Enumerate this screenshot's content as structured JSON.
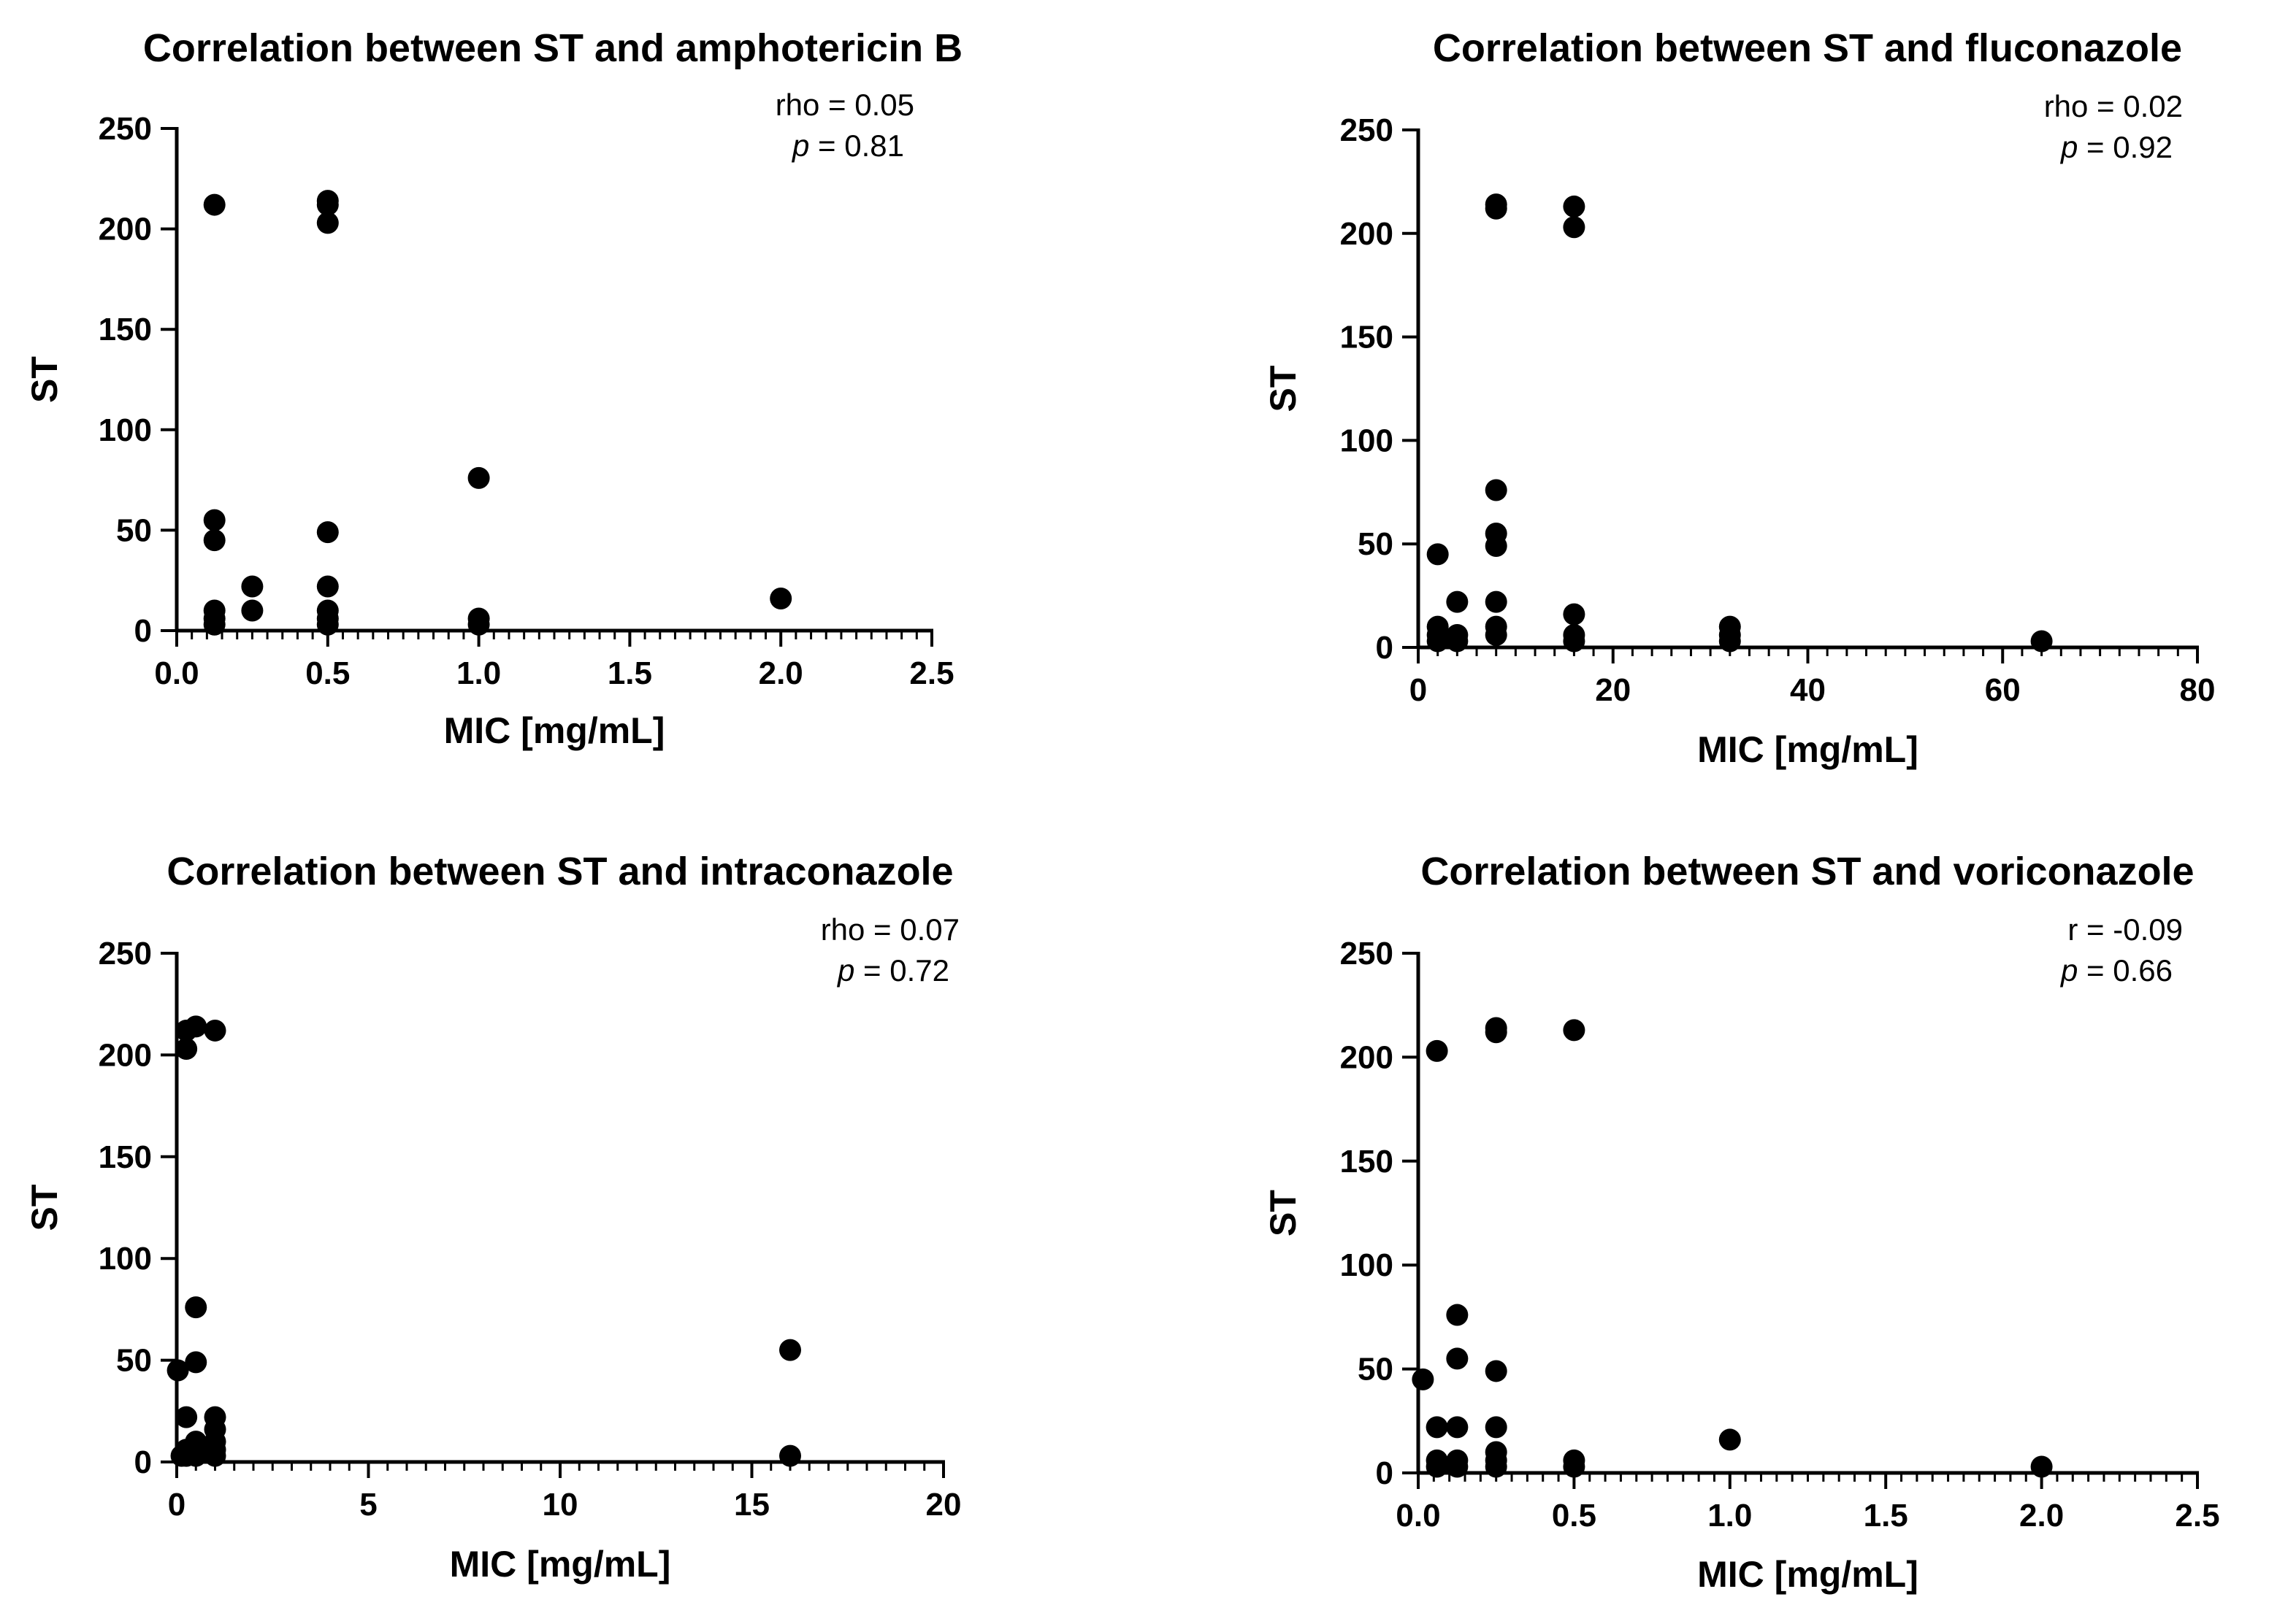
{
  "chart_data": [
    {
      "type": "scatter",
      "title": "Correlation between ST and amphotericin B",
      "xlabel": "MIC [mg/mL]",
      "ylabel": "ST",
      "xlim": [
        0,
        2.5
      ],
      "ylim": [
        0,
        250
      ],
      "xticks": [
        "0.0",
        "0.5",
        "1.0",
        "1.5",
        "2.0",
        "2.5"
      ],
      "yticks": [
        "0",
        "50",
        "100",
        "150",
        "200",
        "250"
      ],
      "stat_label": "rho = 0.05",
      "p_symbol": "p",
      "p_value": " = 0.81",
      "points": [
        [
          0.125,
          212
        ],
        [
          0.125,
          55
        ],
        [
          0.125,
          45
        ],
        [
          0.125,
          10
        ],
        [
          0.125,
          6
        ],
        [
          0.125,
          3
        ],
        [
          0.25,
          22
        ],
        [
          0.25,
          10
        ],
        [
          0.5,
          214
        ],
        [
          0.5,
          212
        ],
        [
          0.5,
          203
        ],
        [
          0.5,
          49
        ],
        [
          0.5,
          22
        ],
        [
          0.5,
          10
        ],
        [
          0.5,
          6
        ],
        [
          0.5,
          3
        ],
        [
          1.0,
          76
        ],
        [
          1.0,
          6
        ],
        [
          1.0,
          3
        ],
        [
          2.0,
          16
        ]
      ]
    },
    {
      "type": "scatter",
      "title": "Correlation between ST and fluconazole",
      "xlabel": "MIC [mg/mL]",
      "ylabel": "ST",
      "xlim": [
        0,
        80
      ],
      "ylim": [
        0,
        250
      ],
      "xticks": [
        "0",
        "20",
        "40",
        "60",
        "80"
      ],
      "yticks": [
        "0",
        "50",
        "100",
        "150",
        "200",
        "250"
      ],
      "stat_label": "rho = 0.02",
      "p_symbol": "p",
      "p_value": " = 0.92",
      "points": [
        [
          2,
          45
        ],
        [
          2,
          10
        ],
        [
          2,
          6
        ],
        [
          2,
          3
        ],
        [
          4,
          22
        ],
        [
          4,
          6
        ],
        [
          4,
          3
        ],
        [
          8,
          214
        ],
        [
          8,
          212
        ],
        [
          8,
          76
        ],
        [
          8,
          55
        ],
        [
          8,
          49
        ],
        [
          8,
          22
        ],
        [
          8,
          10
        ],
        [
          8,
          6
        ],
        [
          16,
          213
        ],
        [
          16,
          203
        ],
        [
          16,
          16
        ],
        [
          16,
          6
        ],
        [
          16,
          3
        ],
        [
          32,
          10
        ],
        [
          32,
          6
        ],
        [
          32,
          3
        ],
        [
          64,
          3
        ]
      ]
    },
    {
      "type": "scatter",
      "title": "Correlation between ST and intraconazole",
      "xlabel": "MIC [mg/mL]",
      "ylabel": "ST",
      "xlim": [
        0,
        20
      ],
      "ylim": [
        0,
        250
      ],
      "xticks": [
        "0",
        "5",
        "10",
        "15",
        "20"
      ],
      "yticks": [
        "0",
        "50",
        "100",
        "150",
        "200",
        "250"
      ],
      "stat_label": "rho = 0.07",
      "p_symbol": "p",
      "p_value": " = 0.72",
      "points": [
        [
          0.03,
          45
        ],
        [
          0.125,
          3
        ],
        [
          0.25,
          212
        ],
        [
          0.25,
          203
        ],
        [
          0.25,
          22
        ],
        [
          0.25,
          6
        ],
        [
          0.25,
          3
        ],
        [
          0.5,
          214
        ],
        [
          0.5,
          76
        ],
        [
          0.5,
          49
        ],
        [
          0.5,
          10
        ],
        [
          0.5,
          6
        ],
        [
          0.5,
          3
        ],
        [
          1,
          212
        ],
        [
          1,
          22
        ],
        [
          1,
          16
        ],
        [
          1,
          10
        ],
        [
          1,
          6
        ],
        [
          1,
          3
        ],
        [
          16,
          55
        ],
        [
          16,
          3
        ]
      ]
    },
    {
      "type": "scatter",
      "title": "Correlation between ST and voriconazole",
      "xlabel": "MIC [mg/mL]",
      "ylabel": "ST",
      "xlim": [
        0,
        2.5
      ],
      "ylim": [
        0,
        250
      ],
      "xticks": [
        "0.0",
        "0.5",
        "1.0",
        "1.5",
        "2.0",
        "2.5"
      ],
      "yticks": [
        "0",
        "50",
        "100",
        "150",
        "200",
        "250"
      ],
      "stat_label": "r = -0.09",
      "p_symbol": "p",
      "p_value": " = 0.66",
      "points": [
        [
          0.015,
          45
        ],
        [
          0.06,
          203
        ],
        [
          0.06,
          22
        ],
        [
          0.06,
          6
        ],
        [
          0.06,
          3
        ],
        [
          0.125,
          76
        ],
        [
          0.125,
          55
        ],
        [
          0.125,
          22
        ],
        [
          0.125,
          6
        ],
        [
          0.125,
          3
        ],
        [
          0.25,
          214
        ],
        [
          0.25,
          212
        ],
        [
          0.25,
          49
        ],
        [
          0.25,
          22
        ],
        [
          0.25,
          10
        ],
        [
          0.25,
          6
        ],
        [
          0.25,
          3
        ],
        [
          0.5,
          213
        ],
        [
          0.5,
          6
        ],
        [
          0.5,
          3
        ],
        [
          1.0,
          16
        ],
        [
          2.0,
          3
        ]
      ]
    }
  ]
}
